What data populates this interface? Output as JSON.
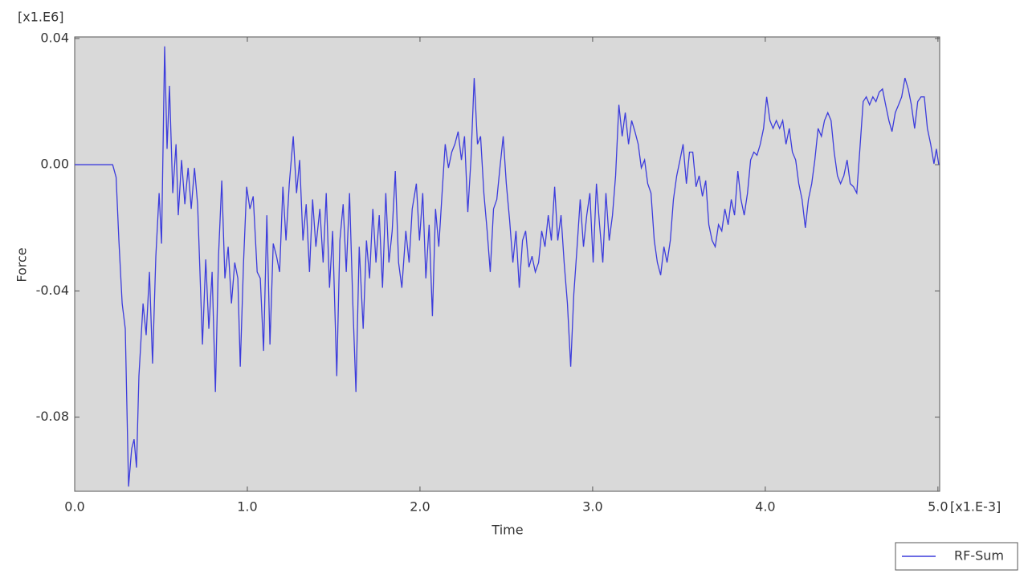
{
  "chart_data": {
    "type": "line",
    "y_scale_label": "[x1.E6]",
    "x_scale_label": "[x1.E-3]",
    "xlabel": "Time",
    "ylabel": "Force",
    "xlim": [
      0,
      5.01
    ],
    "ylim": [
      -0.1035,
      0.0405
    ],
    "xticks": [
      {
        "value": 0,
        "label": "0.0"
      },
      {
        "value": 1,
        "label": "1.0"
      },
      {
        "value": 2,
        "label": "2.0"
      },
      {
        "value": 3,
        "label": "3.0"
      },
      {
        "value": 4,
        "label": "4.0"
      },
      {
        "value": 5,
        "label": "5.0"
      }
    ],
    "yticks": [
      -0.08,
      -0.04,
      {
        "value": 0,
        "label": "0.00"
      },
      0.04
    ],
    "grid": false,
    "legend": "bottom-right",
    "x": [
      0,
      0.22,
      0.24,
      0.256,
      0.275,
      0.293,
      0.312,
      0.33,
      0.344,
      0.358,
      0.372,
      0.396,
      0.414,
      0.433,
      0.451,
      0.47,
      0.489,
      0.503,
      0.521,
      0.535,
      0.549,
      0.568,
      0.587,
      0.6,
      0.619,
      0.638,
      0.657,
      0.675,
      0.694,
      0.712,
      0.74,
      0.759,
      0.777,
      0.796,
      0.815,
      0.833,
      0.852,
      0.87,
      0.889,
      0.908,
      0.927,
      0.945,
      0.959,
      0.978,
      0.996,
      1.015,
      1.034,
      1.057,
      1.075,
      1.094,
      1.113,
      1.131,
      1.15,
      1.169,
      1.187,
      1.206,
      1.224,
      1.243,
      1.266,
      1.285,
      1.303,
      1.322,
      1.341,
      1.36,
      1.378,
      1.397,
      1.42,
      1.439,
      1.457,
      1.476,
      1.494,
      1.518,
      1.536,
      1.555,
      1.573,
      1.592,
      1.611,
      1.629,
      1.648,
      1.671,
      1.69,
      1.708,
      1.727,
      1.745,
      1.764,
      1.783,
      1.802,
      1.82,
      1.839,
      1.857,
      1.876,
      1.895,
      1.918,
      1.937,
      1.955,
      1.979,
      1.997,
      2.016,
      2.034,
      2.053,
      2.072,
      2.09,
      2.109,
      2.128,
      2.146,
      2.165,
      2.184,
      2.202,
      2.221,
      2.24,
      2.258,
      2.277,
      2.295,
      2.314,
      2.333,
      2.351,
      2.37,
      2.389,
      2.407,
      2.426,
      2.445,
      2.463,
      2.482,
      2.5,
      2.519,
      2.538,
      2.556,
      2.575,
      2.594,
      2.612,
      2.631,
      2.649,
      2.668,
      2.687,
      2.705,
      2.724,
      2.743,
      2.761,
      2.78,
      2.798,
      2.817,
      2.835,
      2.854,
      2.873,
      2.891,
      2.91,
      2.928,
      2.947,
      2.966,
      2.984,
      3.003,
      3.022,
      3.04,
      3.059,
      3.077,
      3.096,
      3.115,
      3.133,
      3.152,
      3.171,
      3.189,
      3.208,
      3.226,
      3.245,
      3.264,
      3.282,
      3.301,
      3.319,
      3.338,
      3.357,
      3.375,
      3.394,
      3.413,
      3.431,
      3.45,
      3.468,
      3.487,
      3.506,
      3.524,
      3.543,
      3.561,
      3.58,
      3.599,
      3.617,
      3.636,
      3.655,
      3.673,
      3.692,
      3.71,
      3.729,
      3.748,
      3.766,
      3.785,
      3.803,
      3.822,
      3.841,
      3.859,
      3.878,
      3.897,
      3.915,
      3.934,
      3.952,
      3.971,
      3.99,
      4.008,
      4.027,
      4.045,
      4.064,
      4.083,
      4.101,
      4.12,
      4.139,
      4.157,
      4.176,
      4.194,
      4.213,
      4.232,
      4.25,
      4.269,
      4.287,
      4.306,
      4.325,
      4.343,
      4.362,
      4.381,
      4.399,
      4.418,
      4.436,
      4.455,
      4.474,
      4.492,
      4.511,
      4.53,
      4.548,
      4.567,
      4.585,
      4.604,
      4.623,
      4.641,
      4.66,
      4.679,
      4.697,
      4.716,
      4.734,
      4.753,
      4.772,
      4.79,
      4.809,
      4.828,
      4.846,
      4.865,
      4.883,
      4.902,
      4.921,
      4.939,
      4.958,
      4.977,
      4.991,
      5.005
    ],
    "series": [
      {
        "name": "RF-Sum",
        "color": "#3c3cdc",
        "values": [
          0,
          0,
          -0.004,
          -0.024,
          -0.044,
          -0.052,
          -0.102,
          -0.09,
          -0.087,
          -0.096,
          -0.067,
          -0.044,
          -0.054,
          -0.034,
          -0.063,
          -0.029,
          -0.009,
          -0.025,
          0.0375,
          0.005,
          0.025,
          -0.009,
          0.0065,
          -0.016,
          0.0015,
          -0.0125,
          -0.001,
          -0.014,
          -0.001,
          -0.0125,
          -0.057,
          -0.03,
          -0.052,
          -0.034,
          -0.072,
          -0.029,
          -0.005,
          -0.036,
          -0.026,
          -0.044,
          -0.031,
          -0.036,
          -0.064,
          -0.031,
          -0.007,
          -0.014,
          -0.01,
          -0.034,
          -0.036,
          -0.059,
          -0.016,
          -0.057,
          -0.025,
          -0.029,
          -0.034,
          -0.007,
          -0.024,
          -0.006,
          0.009,
          -0.009,
          0.0015,
          -0.024,
          -0.0125,
          -0.034,
          -0.011,
          -0.026,
          -0.014,
          -0.031,
          -0.009,
          -0.039,
          -0.021,
          -0.067,
          -0.024,
          -0.0125,
          -0.034,
          -0.009,
          -0.044,
          -0.072,
          -0.026,
          -0.052,
          -0.024,
          -0.036,
          -0.014,
          -0.031,
          -0.016,
          -0.039,
          -0.009,
          -0.031,
          -0.021,
          -0.002,
          -0.031,
          -0.039,
          -0.021,
          -0.031,
          -0.014,
          -0.006,
          -0.024,
          -0.009,
          -0.036,
          -0.019,
          -0.048,
          -0.014,
          -0.026,
          -0.009,
          0.0065,
          -0.001,
          0.004,
          0.0065,
          0.0105,
          0.0015,
          0.009,
          -0.015,
          0.0015,
          0.0275,
          0.0065,
          0.009,
          -0.009,
          -0.021,
          -0.034,
          -0.014,
          -0.011,
          -0.001,
          0.009,
          -0.006,
          -0.0175,
          -0.031,
          -0.021,
          -0.039,
          -0.024,
          -0.021,
          -0.0325,
          -0.029,
          -0.034,
          -0.031,
          -0.021,
          -0.026,
          -0.016,
          -0.024,
          -0.007,
          -0.024,
          -0.016,
          -0.031,
          -0.044,
          -0.064,
          -0.041,
          -0.026,
          -0.011,
          -0.026,
          -0.016,
          -0.009,
          -0.031,
          -0.006,
          -0.019,
          -0.031,
          -0.009,
          -0.024,
          -0.016,
          -0.0035,
          0.019,
          0.009,
          0.0165,
          0.0065,
          0.014,
          0.0105,
          0.0065,
          -0.001,
          0.0015,
          -0.006,
          -0.009,
          -0.024,
          -0.031,
          -0.035,
          -0.026,
          -0.031,
          -0.024,
          -0.011,
          -0.0035,
          0.0015,
          0.0065,
          -0.006,
          0.004,
          0.004,
          -0.007,
          -0.0035,
          -0.01,
          -0.005,
          -0.019,
          -0.024,
          -0.026,
          -0.019,
          -0.021,
          -0.014,
          -0.019,
          -0.011,
          -0.016,
          -0.002,
          -0.011,
          -0.016,
          -0.009,
          0.0015,
          0.004,
          0.003,
          0.0065,
          0.0115,
          0.0215,
          0.014,
          0.0115,
          0.014,
          0.0115,
          0.014,
          0.0065,
          0.0115,
          0.004,
          0.0015,
          -0.006,
          -0.011,
          -0.02,
          -0.011,
          -0.006,
          0.0015,
          0.0115,
          0.009,
          0.014,
          0.0165,
          0.014,
          0.004,
          -0.0035,
          -0.006,
          -0.0035,
          0.0015,
          -0.006,
          -0.007,
          -0.009,
          0.005,
          0.02,
          0.0215,
          0.019,
          0.0215,
          0.02,
          0.023,
          0.024,
          0.019,
          0.014,
          0.0105,
          0.0165,
          0.019,
          0.0215,
          0.0275,
          0.024,
          0.019,
          0.0115,
          0.02,
          0.0215,
          0.0215,
          0.0115,
          0.0065,
          0.0003,
          0.005,
          0
        ]
      }
    ]
  }
}
